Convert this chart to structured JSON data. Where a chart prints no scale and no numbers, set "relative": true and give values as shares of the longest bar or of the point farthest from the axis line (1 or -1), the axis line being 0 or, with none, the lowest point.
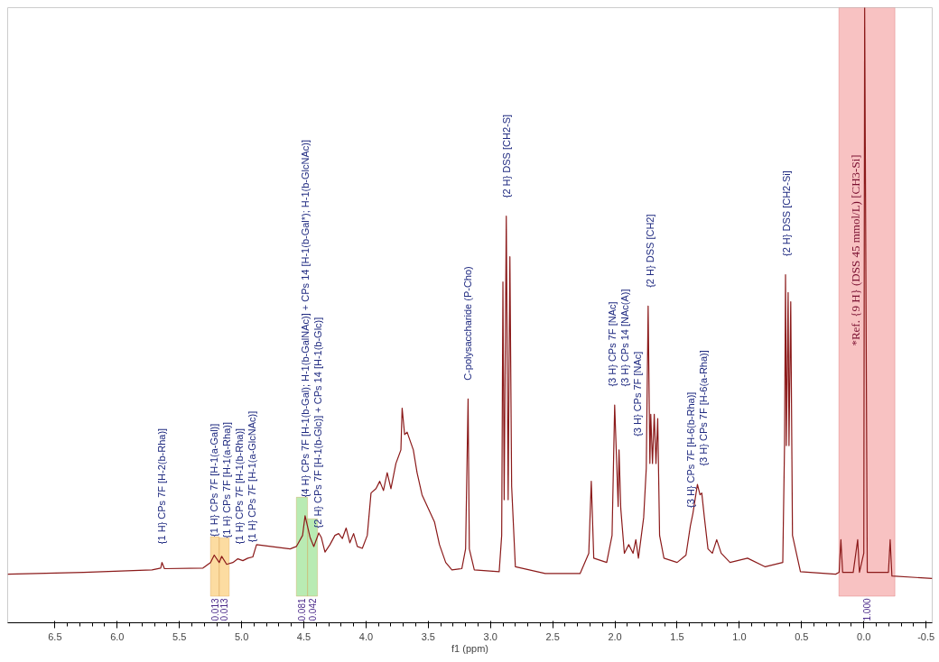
{
  "chart_data": {
    "type": "line",
    "relative": true,
    "xlabel": "f1 (ppm)",
    "xlim": [
      6.88,
      -0.55
    ],
    "xticks": [
      6.5,
      {
        "value": 6,
        "label": "6.0"
      },
      5.5,
      {
        "value": 5,
        "label": "5.0"
      },
      4.5,
      {
        "value": 4,
        "label": "4.0"
      },
      3.5,
      {
        "value": 3,
        "label": "3.0"
      },
      2.5,
      {
        "value": 2,
        "label": "2.0"
      },
      1.5,
      {
        "value": 1,
        "label": "1.0"
      },
      0.5,
      {
        "value": 0,
        "label": "0.0"
      },
      -0.5
    ],
    "grid": false,
    "marker": "none",
    "line_style": "solid",
    "series": [
      {
        "color": "#8b1a1a",
        "x": [
          6.88,
          6.27,
          5.72,
          5.65,
          5.64,
          5.62,
          5.31,
          5.25,
          5.22,
          5.18,
          5.16,
          5.12,
          5.07,
          5.03,
          4.99,
          4.95,
          4.91,
          4.88,
          4.61,
          4.56,
          4.51,
          4.49,
          4.45,
          4.42,
          4.38,
          4.36,
          4.33,
          4.29,
          4.25,
          4.22,
          4.19,
          4.16,
          4.13,
          4.1,
          4.07,
          4.03,
          3.99,
          3.96,
          3.92,
          3.89,
          3.86,
          3.83,
          3.8,
          3.76,
          3.72,
          3.71,
          3.69,
          3.67,
          3.62,
          3.59,
          3.55,
          3.5,
          3.45,
          3.41,
          3.36,
          3.31,
          3.23,
          3.2,
          3.18,
          3.17,
          3.13,
          2.93,
          2.91,
          2.9,
          2.89,
          2.873,
          2.858,
          2.844,
          2.83,
          2.8,
          2.56,
          2.28,
          2.21,
          2.19,
          2.17,
          2.066,
          2.023,
          2.002,
          1.988,
          1.974,
          1.967,
          1.953,
          1.924,
          1.889,
          1.854,
          1.832,
          1.811,
          1.769,
          1.748,
          1.733,
          1.719,
          1.712,
          1.698,
          1.684,
          1.67,
          1.656,
          1.641,
          1.606,
          1.5,
          1.429,
          1.394,
          1.373,
          1.337,
          1.316,
          1.302,
          1.281,
          1.252,
          1.217,
          1.182,
          1.146,
          1.075,
          0.934,
          0.792,
          0.651,
          0.637,
          0.629,
          0.622,
          0.608,
          0.601,
          0.587,
          0.573,
          0.509,
          0.226,
          0.198,
          0.184,
          0.17,
          0.085,
          0.049,
          0.035,
          0.0,
          -0.007,
          -0.028,
          -0.198,
          -0.212,
          -0.226,
          -0.55
        ],
        "values": [
          0.079,
          0.082,
          0.086,
          0.089,
          0.098,
          0.088,
          0.089,
          0.098,
          0.11,
          0.098,
          0.108,
          0.095,
          0.098,
          0.104,
          0.101,
          0.105,
          0.107,
          0.127,
          0.12,
          0.124,
          0.142,
          0.174,
          0.139,
          0.124,
          0.146,
          0.139,
          0.115,
          0.127,
          0.142,
          0.145,
          0.137,
          0.154,
          0.13,
          0.145,
          0.124,
          0.121,
          0.142,
          0.211,
          0.218,
          0.23,
          0.215,
          0.244,
          0.218,
          0.259,
          0.281,
          0.349,
          0.306,
          0.31,
          0.281,
          0.244,
          0.208,
          0.186,
          0.164,
          0.127,
          0.098,
          0.086,
          0.088,
          0.12,
          0.364,
          0.12,
          0.086,
          0.083,
          0.142,
          0.554,
          0.2,
          0.661,
          0.2,
          0.595,
          0.222,
          0.091,
          0.08,
          0.08,
          0.113,
          0.23,
          0.105,
          0.098,
          0.142,
          0.354,
          0.273,
          0.189,
          0.281,
          0.186,
          0.113,
          0.127,
          0.113,
          0.135,
          0.105,
          0.171,
          0.251,
          0.515,
          0.259,
          0.339,
          0.259,
          0.339,
          0.259,
          0.332,
          0.142,
          0.105,
          0.098,
          0.11,
          0.157,
          0.178,
          0.225,
          0.208,
          0.211,
          0.171,
          0.12,
          0.113,
          0.135,
          0.113,
          0.098,
          0.105,
          0.091,
          0.098,
          0.288,
          0.566,
          0.288,
          0.537,
          0.288,
          0.522,
          0.142,
          0.083,
          0.079,
          0.082,
          0.135,
          0.082,
          0.082,
          0.135,
          0.082,
          0.113,
          1.0,
          0.082,
          0.082,
          0.135,
          0.076,
          0.072
        ]
      }
    ],
    "bands": [
      {
        "axis": "x",
        "from": 0.2,
        "to": -0.25,
        "label": "*Ref. {9 H} (DSS 45 mmol/L) [CH3-Si]",
        "color": "#f6b3b3"
      },
      {
        "axis": "x",
        "from": 5.25,
        "to": 5.18,
        "label": "0.013",
        "color": "#fbd38a"
      },
      {
        "axis": "x",
        "from": 5.18,
        "to": 5.1,
        "label": "0.013",
        "color": "#fbd38a"
      },
      {
        "axis": "x",
        "from": 4.56,
        "to": 4.47,
        "label": "0.081",
        "color": "#a8e6a0"
      },
      {
        "axis": "x",
        "from": 4.47,
        "to": 4.39,
        "label": "0.042",
        "color": "#a8e6a0"
      }
    ],
    "annotations": [
      {
        "text": "{1 H} CPs 7F [H-2(b-Rha)]",
        "x": 5.64,
        "y": 0.098
      },
      {
        "text": "{1 H} CPs 7F [H-1(a-Gal)]",
        "x": 5.22,
        "y": 0.11
      },
      {
        "text": "{1 H} CPs 7F [H-1(a-Rha)]",
        "x": 5.16,
        "y": 0.108
      },
      {
        "text": "{1 H} CPs 7F [H-1(b-Rha)]",
        "x": 5.07,
        "y": 0.098
      },
      {
        "text": "{1 H} CPs 7F [H-1(a-GlcNAc)]",
        "x": 5.0,
        "y": 0.101
      },
      {
        "text": "{4 H} CPs 7F [H-1(b-Gal); H-1(b-GalNAc)] + CPs 14 [H-1(b-Gal*); H-1(b-GlcNAc)]",
        "x": 4.49,
        "y": 0.174
      },
      {
        "text": "{2 H} CPs 7F [H-1(b-Glc)] + CPs 14 [H-1(b-Glc)]",
        "x": 4.42,
        "y": 0.124
      },
      {
        "text": "C-polysaccharide (P-Cho)",
        "x": 3.18,
        "y": 0.364
      },
      {
        "text": "{2 H} DSS [CH2-S]",
        "x": 2.873,
        "y": 0.661
      },
      {
        "text": "{3 H} CPs 7F [NAc]",
        "x": 2.023,
        "y": 0.354
      },
      {
        "text": "{3 H} CPs 14 [NAc(A)]",
        "x": 2.002,
        "y": 0.354
      },
      {
        "text": "{3 H} CPs 7F [NAc]",
        "x": 1.988,
        "y": 0.273
      },
      {
        "text": "{2 H} DSS [CH2]",
        "x": 1.733,
        "y": 0.515
      },
      {
        "text": "{3 H} CPs 7F [H-6(b-Rha)]",
        "x": 1.394,
        "y": 0.157
      },
      {
        "text": "{3 H} CPs 7F [H-6(a-Rha)]",
        "x": 1.337,
        "y": 0.225
      },
      {
        "text": "{2 H} DSS [CH2-Si]",
        "x": 0.62,
        "y": 0.566
      },
      "1.000"
    ]
  }
}
